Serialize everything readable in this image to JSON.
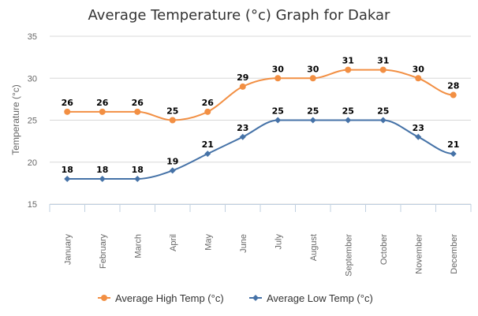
{
  "chart_data": {
    "type": "line",
    "title": "Average Temperature (°c) Graph for Dakar",
    "ylabel": "Temperature (°c)",
    "xlabel": "",
    "ylim": [
      15,
      35
    ],
    "yticks": [
      15,
      20,
      25,
      30,
      35
    ],
    "categories": [
      "January",
      "February",
      "March",
      "April",
      "May",
      "June",
      "July",
      "August",
      "September",
      "October",
      "November",
      "December"
    ],
    "grid": true,
    "legend_position": "bottom",
    "series": [
      {
        "name": "Average High Temp (°c)",
        "color": "#f28f43",
        "marker": "circle",
        "values": [
          26,
          26,
          26,
          25,
          26,
          29,
          30,
          30,
          31,
          31,
          30,
          28
        ]
      },
      {
        "name": "Average Low Temp (°c)",
        "color": "#4572a7",
        "marker": "diamond",
        "values": [
          18,
          18,
          18,
          19,
          21,
          23,
          25,
          25,
          25,
          25,
          23,
          21
        ]
      }
    ]
  }
}
